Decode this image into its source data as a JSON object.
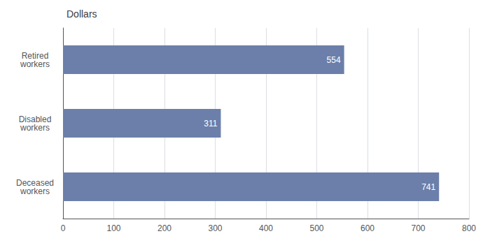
{
  "chart_data": {
    "type": "bar",
    "orientation": "horizontal",
    "title": "Dollars",
    "categories": [
      "Deceased\nworkers",
      "Disabled\nworkers",
      "Retired\nworkers"
    ],
    "values": [
      741,
      311,
      554
    ],
    "color": "#6b7faa",
    "xlim": [
      0,
      800
    ],
    "xticks": [
      0,
      100,
      200,
      300,
      400,
      500,
      600,
      700,
      800
    ],
    "grid": true,
    "data_labels": true
  }
}
